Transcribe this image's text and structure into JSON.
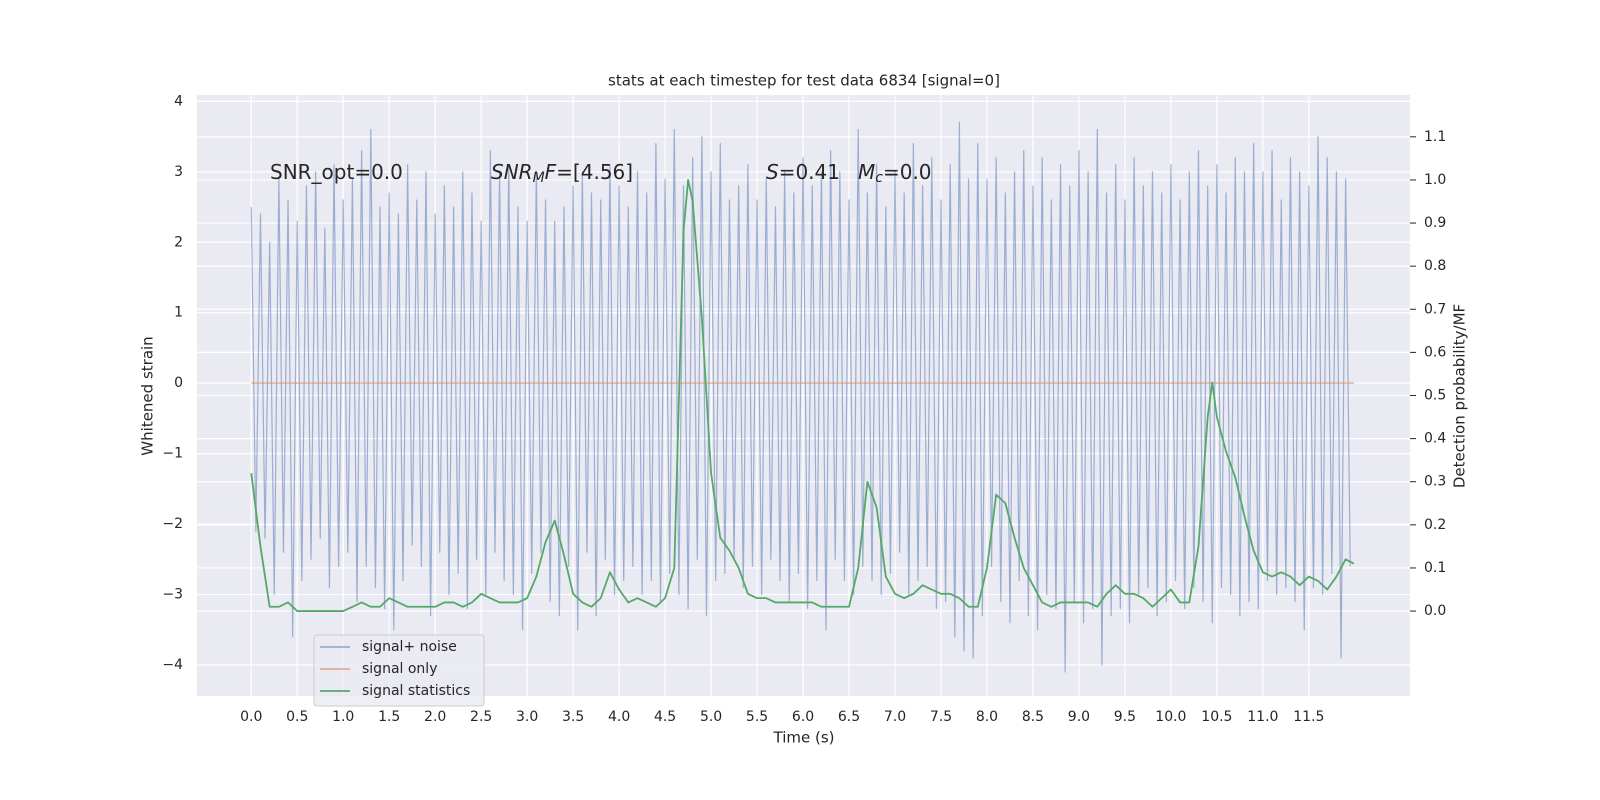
{
  "chart_data": {
    "type": "line",
    "title": "stats at each timestep for test data 6834 [signal=0]",
    "x_label": "Time (s)",
    "y_label": "Whitened strain",
    "y2_label": "Detection probability/MF",
    "xlim": [
      -0.59,
      12.6
    ],
    "ylim": [
      -4.44,
      4.09
    ],
    "y2lim": [
      -0.197,
      1.197
    ],
    "grid": true,
    "background": "#eaeaf2",
    "legend": "lower left",
    "xticks": [
      {
        "value": 0,
        "label": "0.0"
      },
      0.5,
      {
        "value": 1,
        "label": "1.0"
      },
      1.5,
      {
        "value": 2,
        "label": "2.0"
      },
      2.5,
      {
        "value": 3,
        "label": "3.0"
      },
      3.5,
      {
        "value": 4,
        "label": "4.0"
      },
      4.5,
      {
        "value": 5,
        "label": "5.0"
      },
      5.5,
      {
        "value": 6,
        "label": "6.0"
      },
      6.5,
      {
        "value": 7,
        "label": "7.0"
      },
      7.5,
      {
        "value": 8,
        "label": "8.0"
      },
      8.5,
      {
        "value": 9,
        "label": "9.0"
      },
      9.5,
      {
        "value": 10,
        "label": "10.0"
      },
      10.5,
      {
        "value": 11,
        "label": "11.0"
      },
      11.5
    ],
    "yticks": [
      {
        "value": -4,
        "label": "−4"
      },
      {
        "value": -3,
        "label": "−3"
      },
      {
        "value": -2,
        "label": "−2"
      },
      {
        "value": -1,
        "label": "−1"
      },
      0,
      1,
      2,
      3,
      4
    ],
    "y2ticks": [
      {
        "value": 0,
        "label": "0.0"
      },
      0.1,
      0.2,
      0.3,
      0.4,
      0.5,
      0.6,
      0.7,
      0.8,
      0.9,
      {
        "value": 1,
        "label": "1.0"
      },
      1.1
    ],
    "annotations": [
      {
        "parts": [
          {
            "text": "SNR_opt=0.0"
          }
        ]
      },
      {
        "parts": [
          {
            "text": "SNR",
            "style": "italic"
          },
          {
            "text": "M",
            "style": "italic-sub"
          },
          {
            "text": "F",
            "style": "italic"
          },
          {
            "text": "=[4.56]"
          }
        ]
      },
      {
        "parts": [
          {
            "text": "S",
            "style": "italic"
          },
          {
            "text": "=0.41"
          }
        ]
      },
      {
        "parts": [
          {
            "text": "M",
            "style": "italic"
          },
          {
            "text": "c",
            "style": "italic-sub"
          },
          {
            "text": "=0.0"
          }
        ]
      }
    ],
    "series": [
      {
        "name": "signal+ noise",
        "color": "#4c72b0",
        "opacity": 0.5,
        "width": 1.2,
        "x": [
          0,
          0.05,
          0.1,
          0.15,
          0.2,
          0.25,
          0.3,
          0.35,
          0.4,
          0.45,
          0.5,
          0.55,
          0.6,
          0.65,
          0.7,
          0.75,
          0.8,
          0.85,
          0.9,
          0.95,
          1,
          1.05,
          1.1,
          1.15,
          1.2,
          1.25,
          1.3,
          1.35,
          1.4,
          1.45,
          1.5,
          1.55,
          1.6,
          1.65,
          1.7,
          1.75,
          1.8,
          1.85,
          1.9,
          1.95,
          2,
          2.05,
          2.1,
          2.15,
          2.2,
          2.25,
          2.3,
          2.35,
          2.4,
          2.45,
          2.5,
          2.55,
          2.6,
          2.65,
          2.7,
          2.75,
          2.8,
          2.85,
          2.9,
          2.95,
          3,
          3.05,
          3.1,
          3.15,
          3.2,
          3.25,
          3.3,
          3.35,
          3.4,
          3.45,
          3.5,
          3.55,
          3.6,
          3.65,
          3.7,
          3.75,
          3.8,
          3.85,
          3.9,
          3.95,
          4,
          4.05,
          4.1,
          4.15,
          4.2,
          4.25,
          4.3,
          4.35,
          4.4,
          4.45,
          4.5,
          4.55,
          4.6,
          4.65,
          4.7,
          4.75,
          4.8,
          4.85,
          4.9,
          4.95,
          5,
          5.05,
          5.1,
          5.15,
          5.2,
          5.25,
          5.3,
          5.35,
          5.4,
          5.45,
          5.5,
          5.55,
          5.6,
          5.65,
          5.7,
          5.75,
          5.8,
          5.85,
          5.9,
          5.95,
          6,
          6.05,
          6.1,
          6.15,
          6.2,
          6.25,
          6.3,
          6.35,
          6.4,
          6.45,
          6.5,
          6.55,
          6.6,
          6.65,
          6.7,
          6.75,
          6.8,
          6.85,
          6.9,
          6.95,
          7,
          7.05,
          7.1,
          7.15,
          7.2,
          7.25,
          7.3,
          7.35,
          7.4,
          7.45,
          7.5,
          7.55,
          7.6,
          7.65,
          7.7,
          7.75,
          7.8,
          7.85,
          7.9,
          7.95,
          8,
          8.05,
          8.1,
          8.15,
          8.2,
          8.25,
          8.3,
          8.35,
          8.4,
          8.45,
          8.5,
          8.55,
          8.6,
          8.65,
          8.7,
          8.75,
          8.8,
          8.85,
          8.9,
          8.95,
          9,
          9.05,
          9.1,
          9.15,
          9.2,
          9.25,
          9.3,
          9.35,
          9.4,
          9.45,
          9.5,
          9.55,
          9.6,
          9.65,
          9.7,
          9.75,
          9.8,
          9.85,
          9.9,
          9.95,
          10,
          10.05,
          10.1,
          10.15,
          10.2,
          10.25,
          10.3,
          10.35,
          10.4,
          10.45,
          10.5,
          10.55,
          10.6,
          10.65,
          10.7,
          10.75,
          10.8,
          10.85,
          10.9,
          10.95,
          11,
          11.05,
          11.1,
          11.15,
          11.2,
          11.25,
          11.3,
          11.35,
          11.4,
          11.45,
          11.5,
          11.55,
          11.6,
          11.65,
          11.7,
          11.75,
          11.8,
          11.85,
          11.9,
          11.95
        ],
        "values": [
          2.5,
          -2.1,
          2.4,
          -2.2,
          2.0,
          -3.0,
          2.9,
          -2.4,
          2.6,
          -3.6,
          2.3,
          -2.8,
          2.8,
          -2.5,
          3.0,
          -2.2,
          2.2,
          -2.9,
          3.1,
          -2.6,
          2.6,
          -2.4,
          2.9,
          -3.1,
          3.3,
          -2.6,
          3.6,
          -2.9,
          2.5,
          -3.2,
          2.7,
          -3.5,
          2.4,
          -2.8,
          3.1,
          -2.3,
          2.6,
          -2.6,
          3.0,
          -3.3,
          2.4,
          -2.4,
          2.8,
          -3.0,
          2.5,
          -2.7,
          3.0,
          -3.2,
          2.7,
          -2.5,
          2.3,
          -3.0,
          3.3,
          -2.4,
          3.0,
          -2.8,
          3.1,
          -3.0,
          2.5,
          -3.5,
          2.3,
          -2.7,
          3.0,
          -2.4,
          2.6,
          -3.1,
          2.3,
          -3.3,
          2.5,
          -2.6,
          2.8,
          -3.5,
          3.0,
          -2.4,
          2.7,
          -3.3,
          2.6,
          -2.5,
          3.1,
          -3.0,
          2.8,
          -2.8,
          2.5,
          -2.6,
          3.0,
          -3.0,
          2.7,
          -2.8,
          3.4,
          -3.1,
          2.9,
          -2.7,
          3.6,
          -3.0,
          2.8,
          -3.2,
          3.2,
          -2.5,
          3.5,
          -3.3,
          3.0,
          -2.8,
          3.4,
          -2.7,
          2.6,
          -2.5,
          2.8,
          -2.9,
          3.1,
          -2.6,
          2.6,
          -3.0,
          2.9,
          -2.5,
          2.5,
          -2.8,
          3.0,
          -3.1,
          2.7,
          -2.7,
          3.2,
          -3.2,
          2.8,
          -2.8,
          3.0,
          -3.5,
          3.3,
          -2.5,
          3.0,
          -2.8,
          2.6,
          -3.0,
          3.6,
          -2.6,
          2.7,
          -2.8,
          3.1,
          -3.0,
          2.5,
          -2.7,
          3.0,
          -2.4,
          2.7,
          -3.0,
          3.4,
          -2.8,
          2.8,
          -2.6,
          3.2,
          -3.2,
          2.6,
          -3.1,
          3.1,
          -3.6,
          3.7,
          -3.8,
          2.9,
          -3.9,
          3.4,
          -3.3,
          2.9,
          -2.6,
          3.2,
          -3.1,
          2.7,
          -3.4,
          3.0,
          -2.8,
          3.3,
          -3.3,
          2.8,
          -3.5,
          3.2,
          -3.0,
          2.6,
          -3.2,
          3.1,
          -4.1,
          2.8,
          -3.1,
          3.3,
          -3.4,
          3.0,
          -3.2,
          3.6,
          -4.0,
          2.7,
          -3.3,
          3.1,
          -3.2,
          2.6,
          -3.4,
          3.2,
          -3.0,
          2.8,
          -2.9,
          3.0,
          -3.3,
          2.7,
          -3.1,
          3.1,
          -2.8,
          2.6,
          -3.2,
          3.0,
          -2.9,
          3.3,
          -3.1,
          2.8,
          -3.4,
          3.1,
          -2.9,
          2.7,
          -3.0,
          3.2,
          -3.3,
          3.0,
          -3.1,
          3.4,
          -3.2,
          3.0,
          -2.8,
          3.3,
          -3.0,
          2.6,
          -2.9,
          3.2,
          -3.1,
          3.0,
          -3.5,
          2.8,
          -2.9,
          3.5,
          -3.0,
          3.2,
          -2.7,
          3.0,
          -3.9,
          2.9,
          -2.6
        ]
      },
      {
        "name": "signal only",
        "color": "#dd8452",
        "opacity": 0.6,
        "width": 1.5,
        "x": [
          0,
          11.99
        ],
        "values": [
          0,
          0
        ]
      },
      {
        "name": "signal statistics",
        "color": "#55a868",
        "opacity": 1,
        "width": 1.8,
        "axis": "y2",
        "x": [
          0,
          0.1,
          0.2,
          0.3,
          0.4,
          0.5,
          0.6,
          0.7,
          0.8,
          0.9,
          1,
          1.1,
          1.2,
          1.3,
          1.4,
          1.5,
          1.6,
          1.7,
          1.8,
          1.9,
          2,
          2.1,
          2.2,
          2.3,
          2.4,
          2.5,
          2.6,
          2.7,
          2.8,
          2.9,
          3,
          3.1,
          3.2,
          3.3,
          3.4,
          3.5,
          3.6,
          3.7,
          3.8,
          3.9,
          4,
          4.1,
          4.2,
          4.3,
          4.4,
          4.5,
          4.6,
          4.7,
          4.75,
          4.8,
          4.9,
          5,
          5.1,
          5.2,
          5.3,
          5.4,
          5.5,
          5.6,
          5.7,
          5.8,
          5.9,
          6,
          6.1,
          6.2,
          6.3,
          6.4,
          6.5,
          6.6,
          6.7,
          6.8,
          6.9,
          7,
          7.1,
          7.2,
          7.3,
          7.4,
          7.5,
          7.6,
          7.7,
          7.8,
          7.9,
          8,
          8.1,
          8.2,
          8.3,
          8.4,
          8.5,
          8.6,
          8.7,
          8.8,
          8.9,
          9,
          9.1,
          9.2,
          9.3,
          9.4,
          9.5,
          9.6,
          9.7,
          9.8,
          9.9,
          10,
          10.1,
          10.2,
          10.3,
          10.4,
          10.45,
          10.5,
          10.6,
          10.7,
          10.8,
          10.9,
          11,
          11.1,
          11.2,
          11.3,
          11.4,
          11.5,
          11.6,
          11.7,
          11.8,
          11.9,
          11.99
        ],
        "values": [
          0.32,
          0.15,
          0.01,
          0.01,
          0.02,
          0.0,
          0.0,
          0.0,
          0.0,
          0.0,
          0.0,
          0.01,
          0.02,
          0.01,
          0.01,
          0.03,
          0.02,
          0.01,
          0.01,
          0.01,
          0.01,
          0.02,
          0.02,
          0.01,
          0.02,
          0.04,
          0.03,
          0.02,
          0.02,
          0.02,
          0.03,
          0.08,
          0.16,
          0.21,
          0.13,
          0.04,
          0.02,
          0.01,
          0.03,
          0.09,
          0.05,
          0.02,
          0.03,
          0.02,
          0.01,
          0.03,
          0.1,
          0.88,
          1.0,
          0.95,
          0.68,
          0.32,
          0.17,
          0.14,
          0.1,
          0.04,
          0.03,
          0.03,
          0.02,
          0.02,
          0.02,
          0.02,
          0.02,
          0.01,
          0.01,
          0.01,
          0.01,
          0.1,
          0.3,
          0.24,
          0.08,
          0.04,
          0.03,
          0.04,
          0.06,
          0.05,
          0.04,
          0.04,
          0.03,
          0.01,
          0.01,
          0.1,
          0.27,
          0.25,
          0.17,
          0.1,
          0.06,
          0.02,
          0.01,
          0.02,
          0.02,
          0.02,
          0.02,
          0.01,
          0.04,
          0.06,
          0.04,
          0.04,
          0.03,
          0.01,
          0.03,
          0.05,
          0.02,
          0.02,
          0.15,
          0.45,
          0.53,
          0.45,
          0.37,
          0.31,
          0.22,
          0.14,
          0.09,
          0.08,
          0.09,
          0.08,
          0.06,
          0.08,
          0.07,
          0.05,
          0.08,
          0.12,
          0.11
        ]
      }
    ]
  }
}
